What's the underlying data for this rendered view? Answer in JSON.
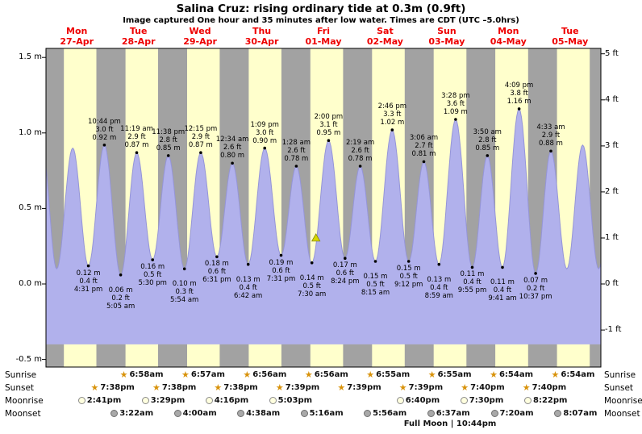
{
  "chart_data": {
    "type": "area",
    "title": "Salina Cruz: rising  ordinary tide at 0.3m (0.9ft)",
    "subtitle": "Image captured One hour and 35 minutes after low water. Times are CDT (UTC –5.0hrs)",
    "ylim_m": [
      -0.55,
      1.56
    ],
    "fill_base_m": -0.4,
    "y_ticks_m": [
      {
        "label": "1.5 m",
        "value": 1.5
      },
      {
        "label": "1.0 m",
        "value": 1.0
      },
      {
        "label": "0.5 m",
        "value": 0.5
      },
      {
        "label": "0.0 m",
        "value": 0.0
      },
      {
        "label": "-0.5 m",
        "value": -0.5
      }
    ],
    "y_ticks_ft": [
      {
        "label": "5 ft",
        "value": 5
      },
      {
        "label": "4 ft",
        "value": 4
      },
      {
        "label": "3 ft",
        "value": 3
      },
      {
        "label": "2 ft",
        "value": 2
      },
      {
        "label": "1 ft",
        "value": 1
      },
      {
        "label": "0 ft",
        "value": 0
      },
      {
        "label": "-1 ft",
        "value": -1
      }
    ],
    "days": [
      {
        "name": "Mon",
        "date": "27-Apr"
      },
      {
        "name": "Tue",
        "date": "28-Apr"
      },
      {
        "name": "Wed",
        "date": "29-Apr"
      },
      {
        "name": "Thu",
        "date": "30-Apr"
      },
      {
        "name": "Fri",
        "date": "01-May"
      },
      {
        "name": "Sat",
        "date": "02-May"
      },
      {
        "name": "Sun",
        "date": "03-May"
      },
      {
        "name": "Mon",
        "date": "04-May"
      },
      {
        "name": "Tue",
        "date": "05-May"
      }
    ],
    "events": [
      {
        "kind": "low",
        "day": 0,
        "time": "4:31 pm",
        "m_label": "0.12 m",
        "ft_label": "0.4 ft",
        "height_m": 0.12
      },
      {
        "kind": "high",
        "day": 0,
        "time": "10:44 pm",
        "ft_label": "3.0 ft",
        "m_label": "0.92 m",
        "height_m": 0.92
      },
      {
        "kind": "low",
        "day": 1,
        "time": "5:05 am",
        "m_label": "0.06 m",
        "ft_label": "0.2 ft",
        "height_m": 0.06
      },
      {
        "kind": "high",
        "day": 1,
        "time": "11:19 am",
        "ft_label": "2.9 ft",
        "m_label": "0.87 m",
        "height_m": 0.87
      },
      {
        "kind": "low",
        "day": 1,
        "time": "5:30 pm",
        "m_label": "0.16 m",
        "ft_label": "0.5 ft",
        "height_m": 0.16
      },
      {
        "kind": "high",
        "day": 1,
        "time": "11:38 pm",
        "ft_label": "2.8 ft",
        "m_label": "0.85 m",
        "height_m": 0.85
      },
      {
        "kind": "low",
        "day": 2,
        "time": "5:54 am",
        "m_label": "0.10 m",
        "ft_label": "0.3 ft",
        "height_m": 0.1
      },
      {
        "kind": "high",
        "day": 2,
        "time": "12:15 pm",
        "ft_label": "2.9 ft",
        "m_label": "0.87 m",
        "height_m": 0.87
      },
      {
        "kind": "low",
        "day": 2,
        "time": "6:31 pm",
        "m_label": "0.18 m",
        "ft_label": "0.6 ft",
        "height_m": 0.18
      },
      {
        "kind": "high",
        "day": 3,
        "time": "12:34 am",
        "ft_label": "2.6 ft",
        "m_label": "0.80 m",
        "height_m": 0.8
      },
      {
        "kind": "low",
        "day": 3,
        "time": "6:42 am",
        "m_label": "0.13 m",
        "ft_label": "0.4 ft",
        "height_m": 0.13
      },
      {
        "kind": "high",
        "day": 3,
        "time": "1:09 pm",
        "ft_label": "3.0 ft",
        "m_label": "0.90 m",
        "height_m": 0.9
      },
      {
        "kind": "low",
        "day": 3,
        "time": "7:31 pm",
        "m_label": "0.19 m",
        "ft_label": "0.6 ft",
        "height_m": 0.19
      },
      {
        "kind": "high",
        "day": 4,
        "time": "1:28 am",
        "ft_label": "2.6 ft",
        "m_label": "0.78 m",
        "height_m": 0.78
      },
      {
        "kind": "low",
        "day": 4,
        "time": "7:30 am",
        "m_label": "0.14 m",
        "ft_label": "0.5 ft",
        "height_m": 0.14
      },
      {
        "kind": "high",
        "day": 4,
        "time": "2:00 pm",
        "ft_label": "3.1 ft",
        "m_label": "0.95 m",
        "height_m": 0.95
      },
      {
        "kind": "low",
        "day": 4,
        "time": "8:24 pm",
        "m_label": "0.17 m",
        "ft_label": "0.6 ft",
        "height_m": 0.17
      },
      {
        "kind": "high",
        "day": 5,
        "time": "2:19 am",
        "ft_label": "2.6 ft",
        "m_label": "0.78 m",
        "height_m": 0.78
      },
      {
        "kind": "low",
        "day": 5,
        "time": "8:15 am",
        "m_label": "0.15 m",
        "ft_label": "0.5 ft",
        "height_m": 0.15
      },
      {
        "kind": "high",
        "day": 5,
        "time": "2:46 pm",
        "ft_label": "3.3 ft",
        "m_label": "1.02 m",
        "height_m": 1.02
      },
      {
        "kind": "low",
        "day": 5,
        "time": "9:12 pm",
        "m_label": "0.15 m",
        "ft_label": "0.5 ft",
        "height_m": 0.15
      },
      {
        "kind": "high",
        "day": 6,
        "time": "3:06 am",
        "ft_label": "2.7 ft",
        "m_label": "0.81 m",
        "height_m": 0.81
      },
      {
        "kind": "low",
        "day": 6,
        "time": "8:59 am",
        "m_label": "0.13 m",
        "ft_label": "0.4 ft",
        "height_m": 0.13
      },
      {
        "kind": "high",
        "day": 6,
        "time": "3:28 pm",
        "ft_label": "3.6 ft",
        "m_label": "1.09 m",
        "height_m": 1.09
      },
      {
        "kind": "low",
        "day": 6,
        "time": "9:55 pm",
        "m_label": "0.11 m",
        "ft_label": "0.4 ft",
        "height_m": 0.11
      },
      {
        "kind": "high",
        "day": 7,
        "time": "3:50 am",
        "ft_label": "2.8 ft",
        "m_label": "0.85 m",
        "height_m": 0.85
      },
      {
        "kind": "low",
        "day": 7,
        "time": "9:41 am",
        "m_label": "0.11 m",
        "ft_label": "0.4 ft",
        "height_m": 0.11
      },
      {
        "kind": "high",
        "day": 7,
        "time": "4:09 pm",
        "ft_label": "3.8 ft",
        "m_label": "1.16 m",
        "height_m": 1.16
      },
      {
        "kind": "low",
        "day": 7,
        "time": "10:37 pm",
        "m_label": "0.07 m",
        "ft_label": "0.2 ft",
        "height_m": 0.07
      },
      {
        "kind": "high",
        "day": 8,
        "time": "4:33 am",
        "ft_label": "2.9 ft",
        "m_label": "0.88 m",
        "height_m": 0.88
      }
    ],
    "edge_extremes": [
      {
        "day": -1,
        "time": "10:40 pm",
        "height_m": 0.88
      },
      {
        "day": 0,
        "time": "4:10 am",
        "height_m": 0.1
      },
      {
        "day": 0,
        "time": "10:25 am",
        "height_m": 0.9
      },
      {
        "day": 8,
        "time": "10:45 am",
        "height_m": 0.1
      },
      {
        "day": 8,
        "time": "4:55 pm",
        "height_m": 0.92
      },
      {
        "day": 8,
        "time": "11:10 pm",
        "height_m": 0.1
      },
      {
        "day": 9,
        "time": "5:15 am",
        "height_m": 0.9
      }
    ],
    "current_marker": {
      "day": 4,
      "time": "9:05 am",
      "height_m": 0.3
    }
  },
  "astro": {
    "row_labels_left": [
      "Sunrise",
      "Sunset",
      "Moonrise",
      "Moonset"
    ],
    "row_labels_right": [
      "Sunrise",
      "Sunset",
      "Moonrise",
      "Moonset"
    ],
    "sunrise": [
      {
        "day": 1,
        "time": "6:58am"
      },
      {
        "day": 2,
        "time": "6:57am"
      },
      {
        "day": 3,
        "time": "6:56am"
      },
      {
        "day": 4,
        "time": "6:56am"
      },
      {
        "day": 5,
        "time": "6:55am"
      },
      {
        "day": 6,
        "time": "6:55am"
      },
      {
        "day": 7,
        "time": "6:54am"
      },
      {
        "day": 8,
        "time": "6:54am"
      }
    ],
    "sunset": [
      {
        "day": 0,
        "time": "7:38pm"
      },
      {
        "day": 1,
        "time": "7:38pm"
      },
      {
        "day": 2,
        "time": "7:38pm"
      },
      {
        "day": 3,
        "time": "7:39pm"
      },
      {
        "day": 4,
        "time": "7:39pm"
      },
      {
        "day": 5,
        "time": "7:39pm"
      },
      {
        "day": 6,
        "time": "7:40pm"
      },
      {
        "day": 7,
        "time": "7:40pm"
      }
    ],
    "moonrise": [
      {
        "day": 0,
        "time": "2:41pm"
      },
      {
        "day": 1,
        "time": "3:29pm"
      },
      {
        "day": 2,
        "time": "4:16pm"
      },
      {
        "day": 3,
        "time": "5:03pm"
      },
      {
        "day": 5,
        "time": "6:40pm"
      },
      {
        "day": 6,
        "time": "7:30pm"
      },
      {
        "day": 7,
        "time": "8:22pm"
      }
    ],
    "moonset": [
      {
        "day": 1,
        "time": "3:22am"
      },
      {
        "day": 2,
        "time": "4:00am"
      },
      {
        "day": 3,
        "time": "4:38am"
      },
      {
        "day": 4,
        "time": "5:16am"
      },
      {
        "day": 5,
        "time": "5:56am"
      },
      {
        "day": 6,
        "time": "6:37am"
      },
      {
        "day": 7,
        "time": "7:20am"
      },
      {
        "day": 8,
        "time": "8:07am"
      }
    ],
    "full_moon": "Full Moon | 10:44pm"
  },
  "colors": {
    "day_background": "#ffffcc",
    "night_background": "#a2a2a2",
    "tide_fill": "#b1b1ec",
    "tide_stroke": "#9595d8",
    "date_label": "#ee0000",
    "marker_fill": "#d8d800",
    "sun_icon": "#d8920a",
    "moonrise_icon": "#ffffdf",
    "moonset_icon": "#a9a9a9"
  }
}
